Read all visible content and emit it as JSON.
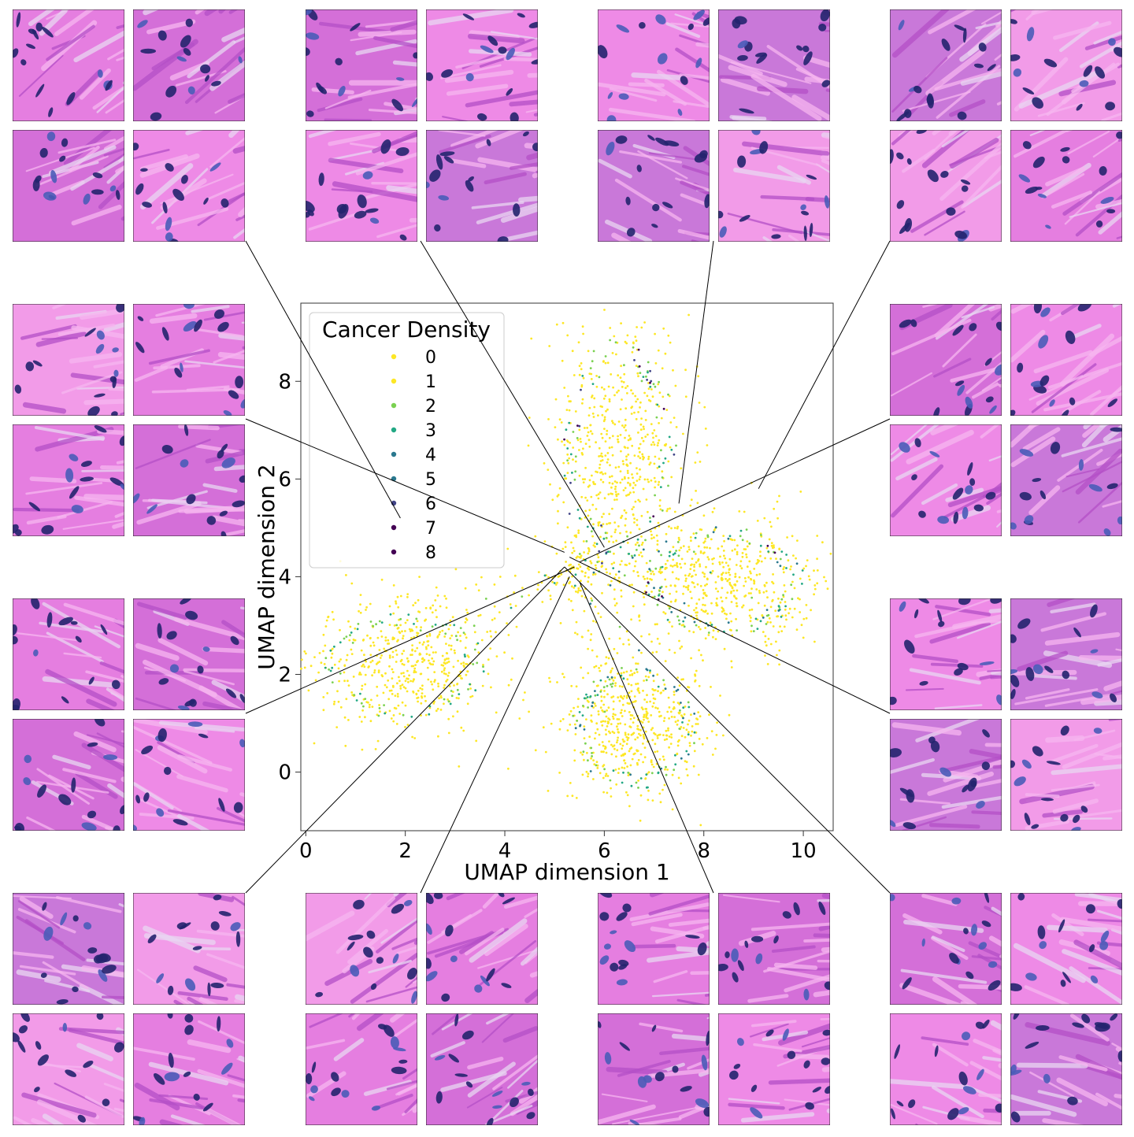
{
  "chart_data": {
    "type": "scatter",
    "xlabel": "UMAP dimension 1",
    "ylabel": "UMAP dimension 2",
    "xlim": [
      -0.1,
      10.6
    ],
    "ylim": [
      -1.2,
      9.6
    ],
    "xticks": [
      0,
      2,
      4,
      6,
      8,
      10
    ],
    "yticks": [
      0,
      2,
      4,
      6,
      8
    ],
    "grid": false,
    "legend": {
      "title": "Cancer Density",
      "placement": "top-left",
      "entries": [
        "0",
        "1",
        "2",
        "3",
        "4",
        "5",
        "6",
        "7",
        "8"
      ]
    },
    "colormap": [
      "#fde725",
      "#fde725",
      "#7ad151",
      "#22a884",
      "#2a788e",
      "#2a788e",
      "#414487",
      "#440154",
      "#440154"
    ],
    "series": [
      {
        "name": "1",
        "color": "#fde725",
        "lobes": [
          "upper",
          "right",
          "lower",
          "left"
        ],
        "share": 0.85
      },
      {
        "name": "2",
        "color": "#7ad151",
        "lobes": [
          "upper",
          "right",
          "lower",
          "left"
        ],
        "share": 0.07
      },
      {
        "name": "3",
        "color": "#22a884",
        "lobes": [
          "upper",
          "right",
          "lower",
          "left"
        ],
        "share": 0.05
      },
      {
        "name": "4",
        "color": "#2a788e",
        "lobes": [
          "right",
          "lower"
        ],
        "share": 0.02
      },
      {
        "name": "6",
        "color": "#414487",
        "lobes": [
          "upper"
        ],
        "share": 0.005
      },
      {
        "name": "7",
        "color": "#440154",
        "lobes": [
          "upper",
          "right"
        ],
        "share": 0.005
      }
    ],
    "clusters": [
      {
        "name": "upper",
        "center": [
          6.3,
          6.6
        ],
        "spread": [
          0.9,
          1.8
        ],
        "edge_color": "#7ad151"
      },
      {
        "name": "right",
        "center": [
          8.4,
          3.9
        ],
        "spread": [
          1.3,
          0.9
        ],
        "edge_color": "#22a884"
      },
      {
        "name": "lower",
        "center": [
          6.6,
          0.9
        ],
        "spread": [
          1.0,
          1.0
        ],
        "edge_color": "#22a884"
      },
      {
        "name": "left",
        "center": [
          2.0,
          2.2
        ],
        "spread": [
          1.3,
          0.9
        ],
        "edge_color": "#22a884"
      }
    ],
    "thumbnail_anchors": [
      [
        1.9,
        5.2
      ],
      [
        6.0,
        4.6
      ],
      [
        7.5,
        5.5
      ],
      [
        9.1,
        5.8
      ],
      [
        5.2,
        4.5
      ],
      [
        5.4,
        4.2
      ],
      [
        5.5,
        4.3
      ],
      [
        5.3,
        4.4
      ],
      [
        5.2,
        4.2
      ],
      [
        5.3,
        4.0
      ],
      [
        5.5,
        3.9
      ],
      [
        5.2,
        4.2
      ]
    ]
  },
  "thumbnails": [
    {
      "name": "top-1"
    },
    {
      "name": "top-2"
    },
    {
      "name": "top-3"
    },
    {
      "name": "top-4"
    },
    {
      "name": "left-1"
    },
    {
      "name": "left-2"
    },
    {
      "name": "right-1"
    },
    {
      "name": "right-2"
    },
    {
      "name": "bottom-1"
    },
    {
      "name": "bottom-2"
    },
    {
      "name": "bottom-3"
    },
    {
      "name": "bottom-4"
    }
  ]
}
